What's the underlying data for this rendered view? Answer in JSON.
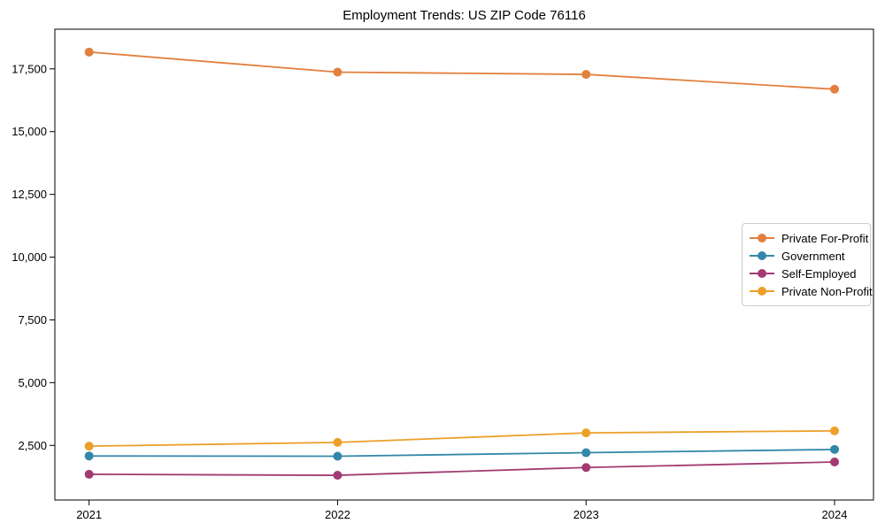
{
  "chart_data": {
    "type": "line",
    "title": "Employment Trends: US ZIP Code 76116",
    "x": [
      "2021",
      "2022",
      "2023",
      "2024"
    ],
    "series": [
      {
        "name": "Private For-Profit",
        "color": "#E2803E",
        "values": [
          18170,
          17370,
          17280,
          16690
        ]
      },
      {
        "name": "Government",
        "color": "#3387A9",
        "values": [
          2080,
          2070,
          2210,
          2340
        ]
      },
      {
        "name": "Self-Employed",
        "color": "#A23B72",
        "values": [
          1350,
          1310,
          1620,
          1840
        ]
      },
      {
        "name": "Private Non-Profit",
        "color": "#ECA02A",
        "values": [
          2470,
          2620,
          3000,
          3080
        ]
      }
    ],
    "xlabel": "",
    "ylabel": "",
    "ylim": [
      325,
      19080
    ],
    "yticks": [
      2500,
      5000,
      7500,
      10000,
      12500,
      15000,
      17500
    ],
    "grid": false,
    "legend_position": "center right",
    "marker": "circle",
    "axis_color": "#000000",
    "background_color": "#ffffff"
  }
}
